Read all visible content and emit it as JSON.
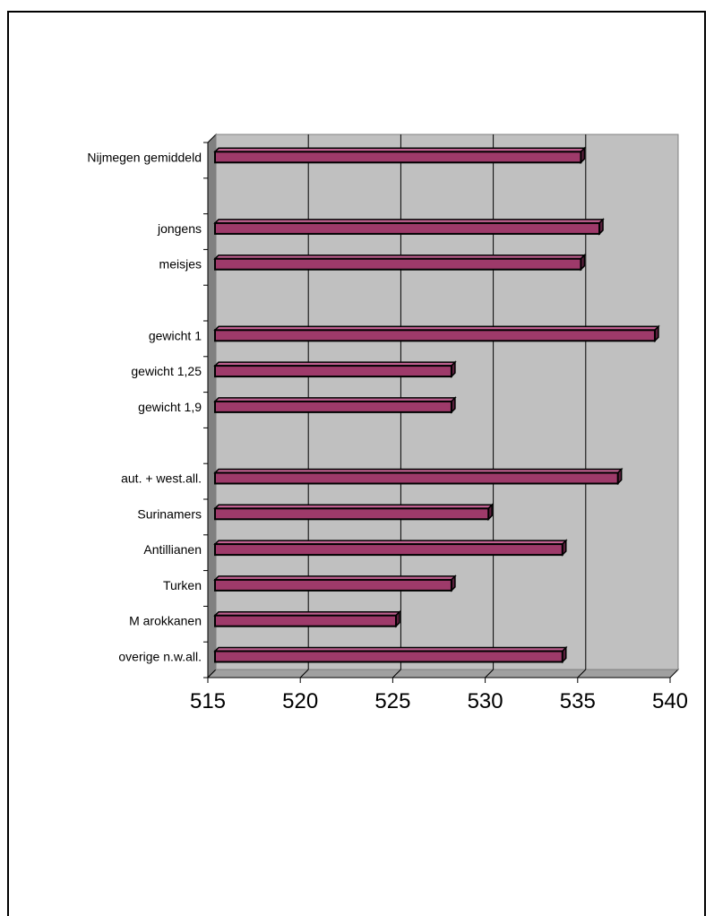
{
  "chart_data": {
    "type": "bar",
    "orientation": "horizontal",
    "title": "",
    "xlabel": "",
    "ylabel": "",
    "xlim": [
      515,
      540
    ],
    "x_ticks": [
      "515",
      "520",
      "525",
      "530",
      "535",
      "540"
    ],
    "grid": true,
    "legend": "none",
    "bar_color": "#9e3a6a",
    "plot_background": "#c0c0c0",
    "categories": [
      "Nijmegen gemiddeld",
      "",
      "jongens",
      "meisjes",
      "",
      "gewicht 1",
      "gewicht 1,25",
      "gewicht 1,9",
      "",
      "aut. + west.all.",
      "Surinamers",
      "Antillianen",
      "Turken",
      "M arokkanen",
      "overige n.w.all."
    ],
    "values": [
      535,
      null,
      536,
      535,
      null,
      539,
      528,
      528,
      null,
      537,
      530,
      534,
      528,
      525,
      534
    ]
  }
}
